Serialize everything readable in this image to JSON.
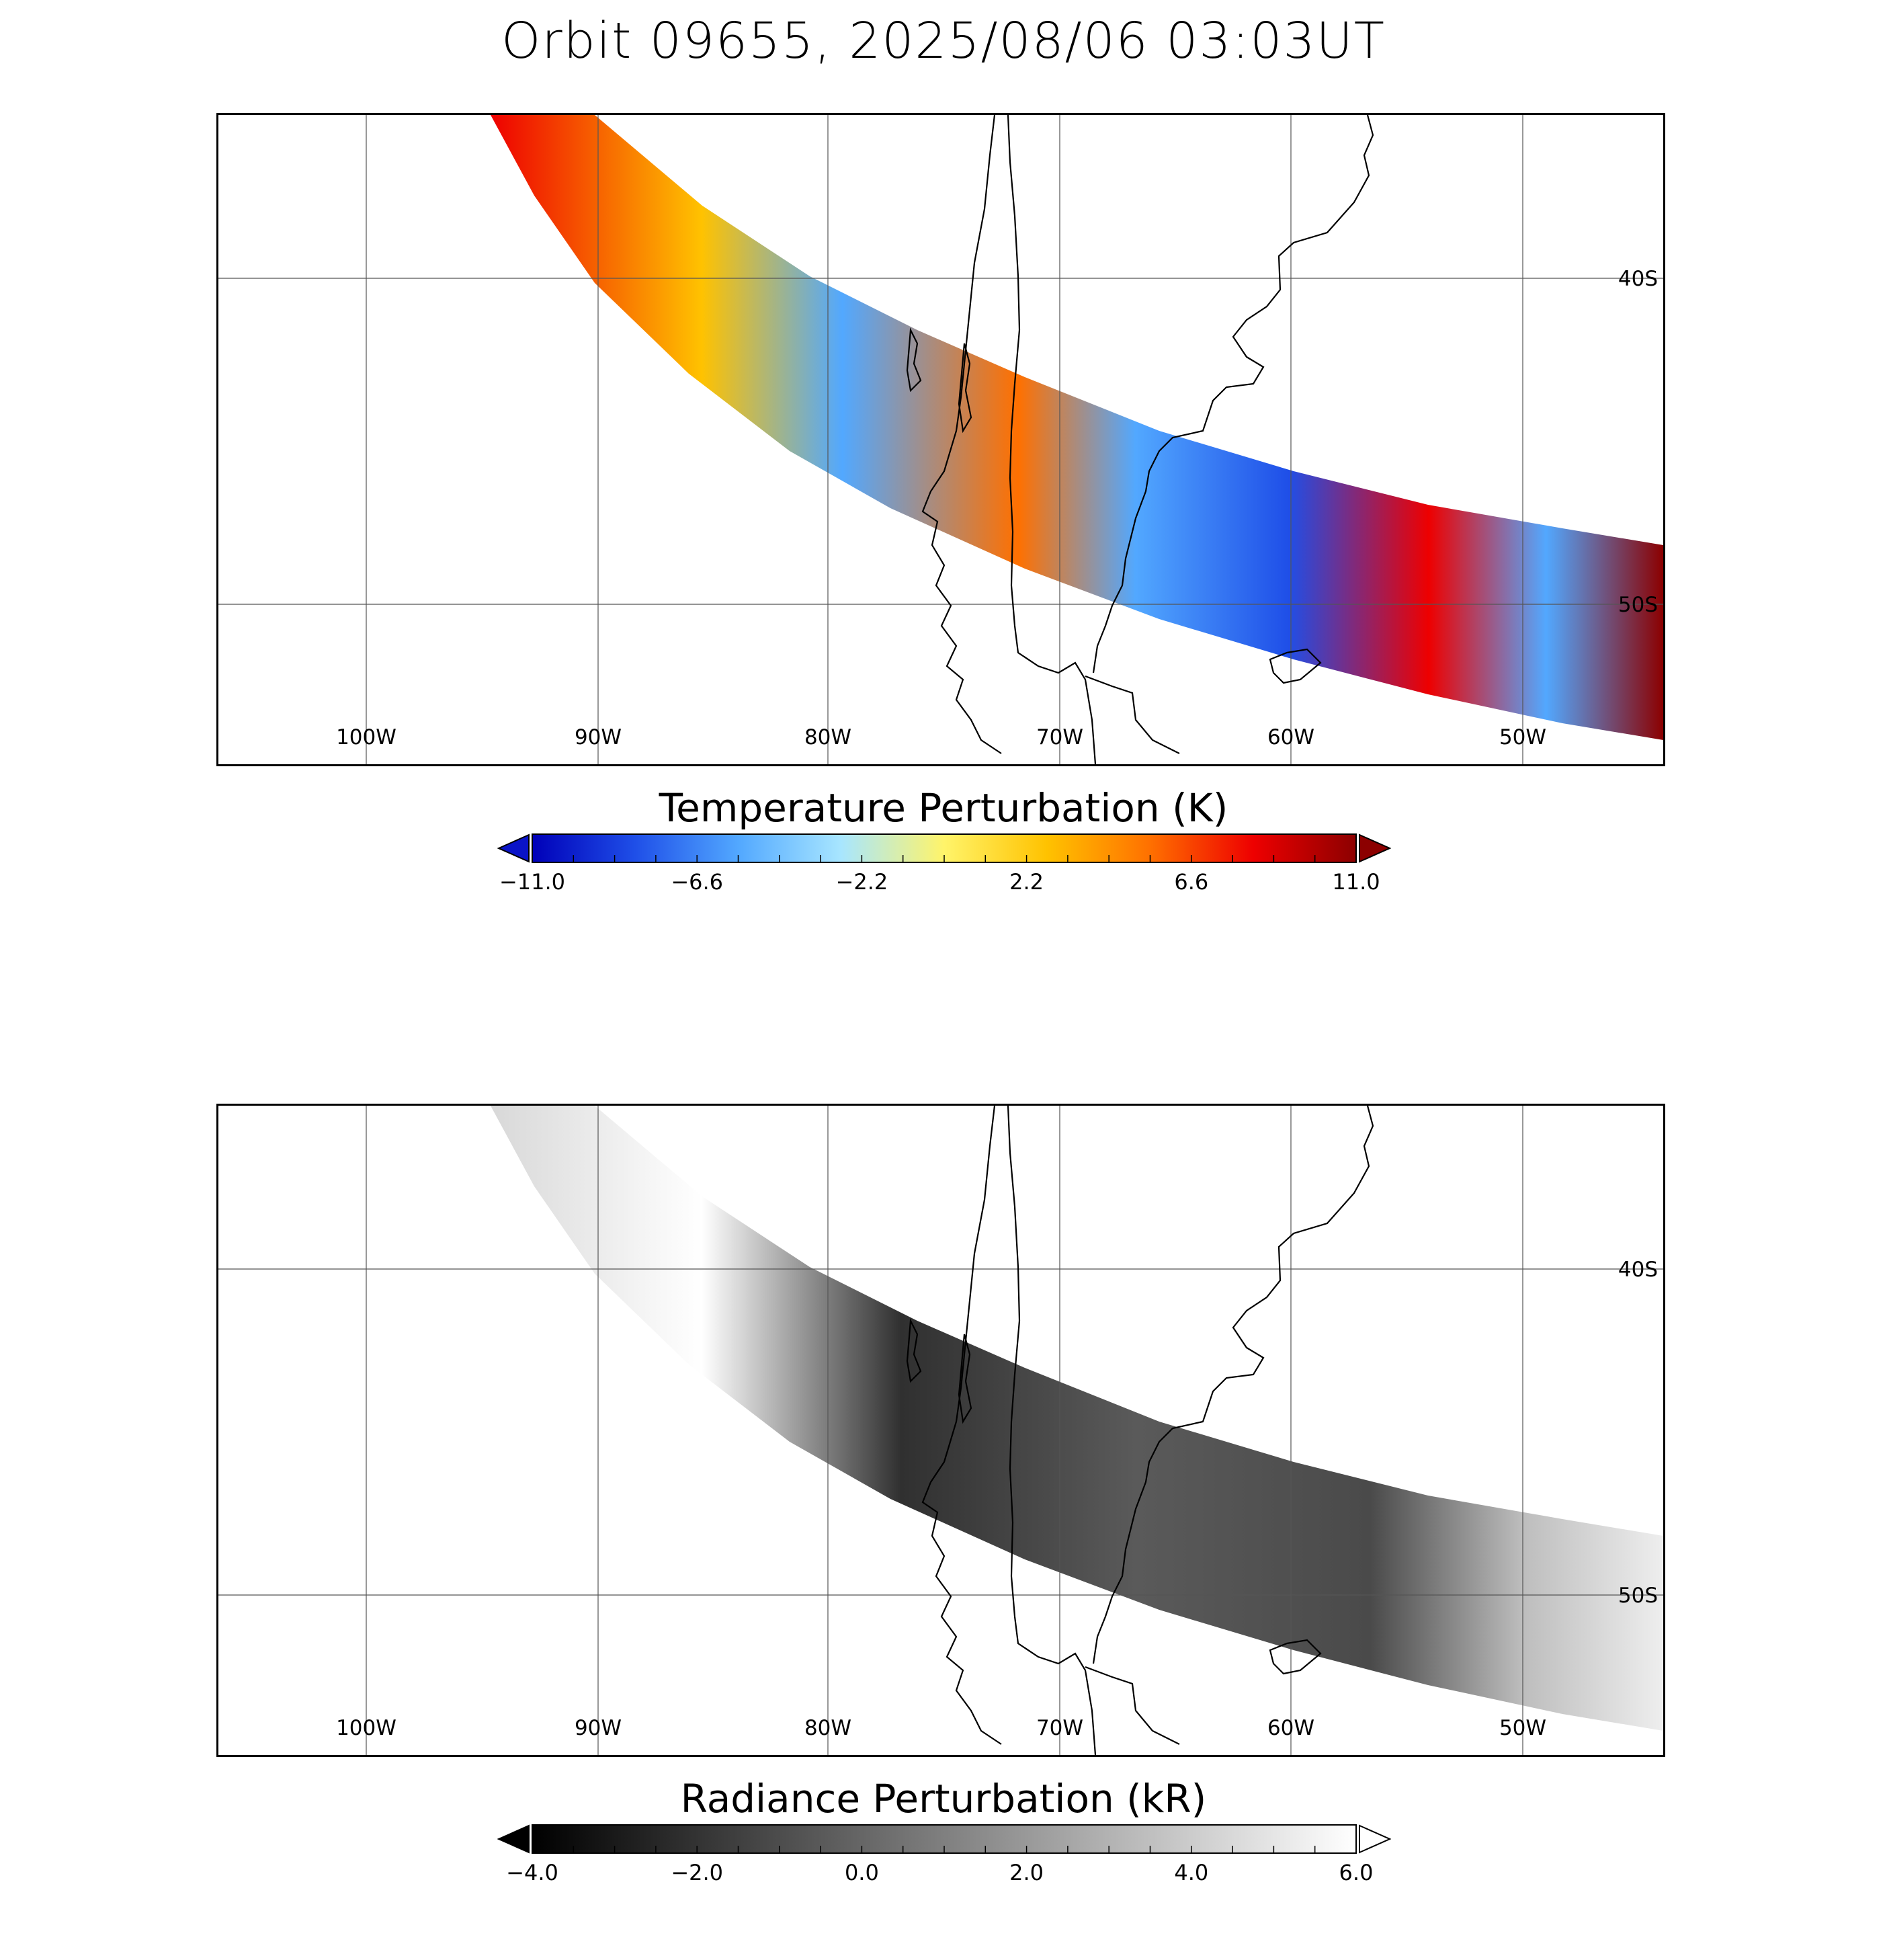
{
  "title": "Orbit 09655, 2025/08/06 03:03UT",
  "map": {
    "lon_labels": [
      "100W",
      "90W",
      "80W",
      "70W",
      "60W",
      "50W"
    ],
    "lat_labels": [
      "40S",
      "50S"
    ]
  },
  "panels": [
    {
      "colorbar_title": "Temperature Perturbation (K)",
      "ticks": [
        "−11.0",
        "−6.6",
        "−2.2",
        "2.2",
        "6.6",
        "11.0"
      ],
      "colormap": [
        "#0000b8",
        "#1f4fe8",
        "#52a8ff",
        "#a8e6ff",
        "#fff46a",
        "#ffc200",
        "#ff7000",
        "#ee0000",
        "#8c0000"
      ],
      "under_color": "#0a14c8",
      "over_color": "#8c0000"
    },
    {
      "colorbar_title": "Radiance Perturbation (kR)",
      "ticks": [
        "−4.0",
        "−2.0",
        "0.0",
        "2.0",
        "4.0",
        "6.0"
      ],
      "colormap": [
        "#000000",
        "#ffffff"
      ],
      "under_color": "#000000",
      "over_color": "#ffffff"
    }
  ]
}
